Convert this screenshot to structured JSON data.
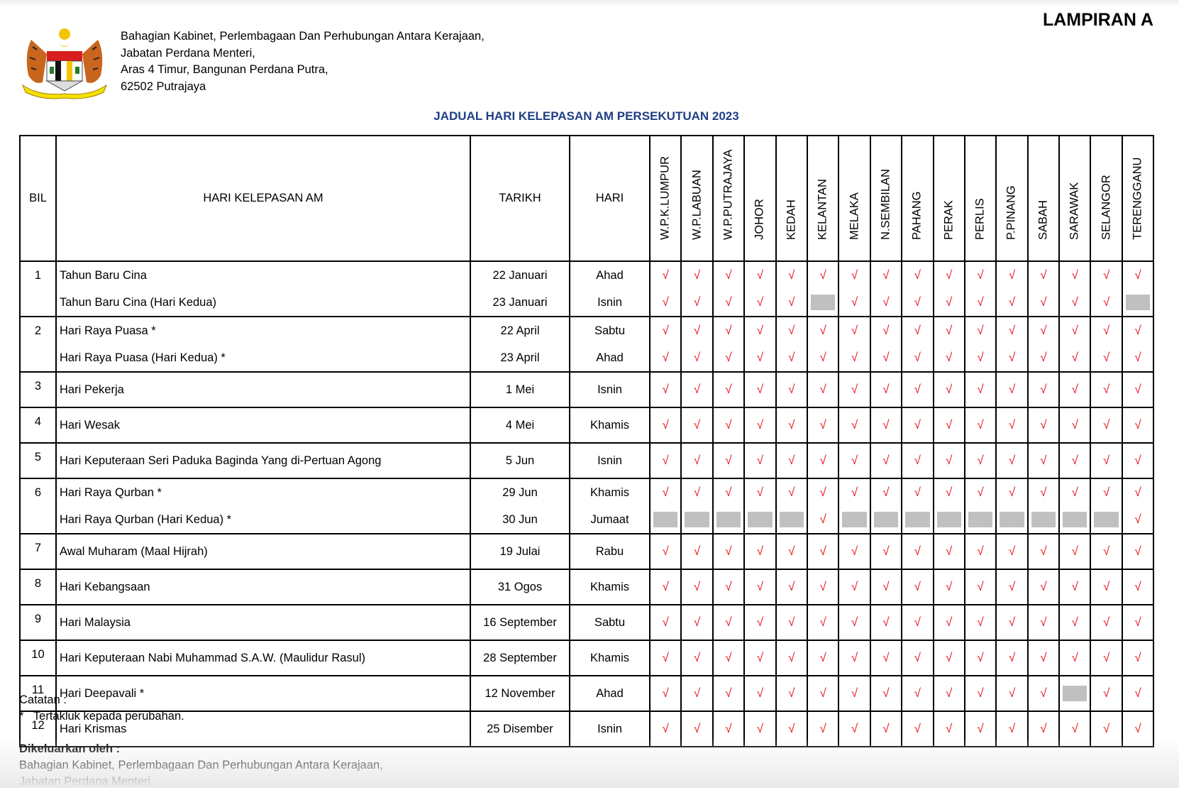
{
  "header": {
    "lampiran": "LAMPIRAN A",
    "address_lines": [
      "Bahagian Kabinet, Perlembagaan Dan Perhubungan Antara  Kerajaan,",
      "Jabatan Perdana Menteri,",
      "Aras 4 Timur, Bangunan Perdana Putra,",
      "62502 Putrajaya"
    ],
    "logo": "jata-negara-malaysia-crest"
  },
  "title": "JADUAL HARI KELEPASAN AM PERSEKUTUAN 2023",
  "colors": {
    "title": "#1f3f86",
    "check": "#e8141b",
    "not_holiday": "#c0c0c0"
  },
  "table": {
    "columns": {
      "bil": "BIL",
      "name": "HARI KELEPASAN AM",
      "date": "TARIKH",
      "day": "HARI"
    },
    "states": [
      "W.P.K.LUMPUR",
      "W.P.LABUAN",
      "W.P.PUTRAJAYA",
      "JOHOR",
      "KEDAH",
      "KELANTAN",
      "MELAKA",
      "N.SEMBILAN",
      "PAHANG",
      "PERAK",
      "PERLIS",
      "P.PINANG",
      "SABAH",
      "SARAWAK",
      "SELANGOR",
      "TERENGGANU"
    ],
    "check_symbol": "√",
    "groups": [
      {
        "bil": "1",
        "rows": [
          {
            "name": "Tahun Baru Cina",
            "date": "22 Januari",
            "day": "Ahad",
            "off": []
          },
          {
            "name": "Tahun Baru Cina (Hari Kedua)",
            "date": "23 Januari",
            "day": "Isnin",
            "off": [
              "KELANTAN",
              "TERENGGANU"
            ]
          }
        ]
      },
      {
        "bil": "2",
        "rows": [
          {
            "name": "Hari Raya Puasa *",
            "date": "22 April",
            "day": "Sabtu",
            "off": []
          },
          {
            "name": "Hari Raya Puasa (Hari Kedua) *",
            "date": "23 April",
            "day": "Ahad",
            "off": []
          }
        ]
      },
      {
        "bil": "3",
        "rows": [
          {
            "name": "Hari Pekerja",
            "date": "1 Mei",
            "day": "Isnin",
            "off": []
          }
        ]
      },
      {
        "bil": "4",
        "rows": [
          {
            "name": "Hari Wesak",
            "date": "4 Mei",
            "day": "Khamis",
            "off": []
          }
        ]
      },
      {
        "bil": "5",
        "rows": [
          {
            "name": "Hari Keputeraan Seri Paduka Baginda Yang di-Pertuan Agong",
            "date": "5 Jun",
            "day": "Isnin",
            "off": []
          }
        ]
      },
      {
        "bil": "6",
        "rows": [
          {
            "name": "Hari Raya Qurban *",
            "date": "29 Jun",
            "day": "Khamis",
            "off": []
          },
          {
            "name": "Hari Raya Qurban (Hari Kedua) *",
            "date": "30 Jun",
            "day": "Jumaat",
            "off": [
              "W.P.K.LUMPUR",
              "W.P.LABUAN",
              "W.P.PUTRAJAYA",
              "JOHOR",
              "KEDAH",
              "MELAKA",
              "N.SEMBILAN",
              "PAHANG",
              "PERAK",
              "PERLIS",
              "P.PINANG",
              "SABAH",
              "SARAWAK",
              "SELANGOR"
            ]
          }
        ]
      },
      {
        "bil": "7",
        "rows": [
          {
            "name": "Awal Muharam (Maal Hijrah)",
            "date": "19 Julai",
            "day": "Rabu",
            "off": []
          }
        ]
      },
      {
        "bil": "8",
        "rows": [
          {
            "name": "Hari Kebangsaan",
            "date": "31 Ogos",
            "day": "Khamis",
            "off": []
          }
        ]
      },
      {
        "bil": "9",
        "rows": [
          {
            "name": "Hari Malaysia",
            "date": "16 September",
            "day": "Sabtu",
            "off": []
          }
        ]
      },
      {
        "bil": "10",
        "rows": [
          {
            "name": "Hari Keputeraan Nabi Muhammad S.A.W. (Maulidur Rasul)",
            "date": "28 September",
            "day": "Khamis",
            "off": []
          }
        ]
      },
      {
        "bil": "11",
        "rows": [
          {
            "name": "Hari Deepavali *",
            "date": "12 November",
            "day": "Ahad",
            "off": [
              "SARAWAK"
            ]
          }
        ]
      },
      {
        "bil": "12",
        "rows": [
          {
            "name": "Hari Krismas",
            "date": "25 Disember",
            "day": "Isnin",
            "off": []
          }
        ]
      }
    ]
  },
  "notes": {
    "label": "Catatan :",
    "star": "*",
    "star_text": "Tertakluk kepada perubahan.",
    "issued_label": "Dikeluarkan oleh :",
    "issued_lines": [
      "Bahagian Kabinet, Perlembagaan Dan Perhubungan Antara Kerajaan,",
      "Jabatan Perdana Menteri,"
    ]
  }
}
